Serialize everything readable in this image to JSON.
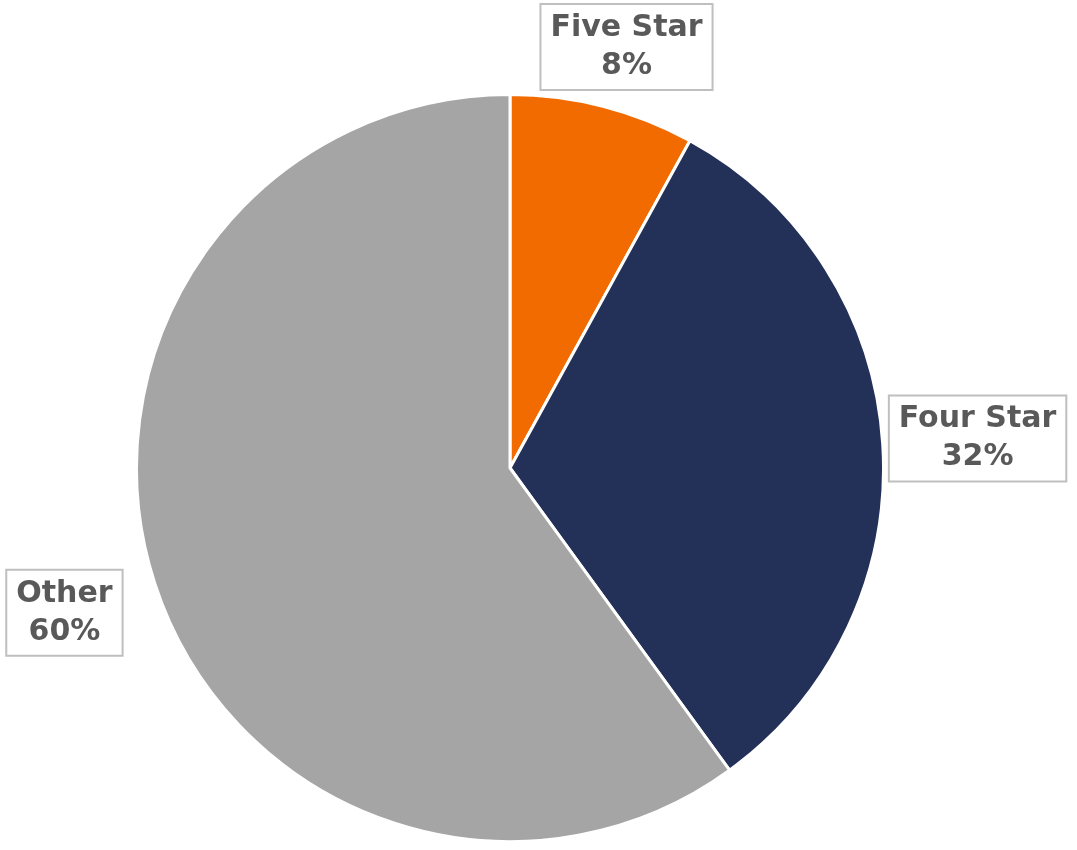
{
  "chart_data": {
    "type": "pie",
    "categories": [
      "Five Star",
      "Four Star",
      "Other"
    ],
    "values": [
      8,
      32,
      60
    ],
    "colors": [
      "#f26b00",
      "#233057",
      "#a5a5a5"
    ],
    "value_labels": [
      "8%",
      "32%",
      "60%"
    ],
    "legend": false
  }
}
